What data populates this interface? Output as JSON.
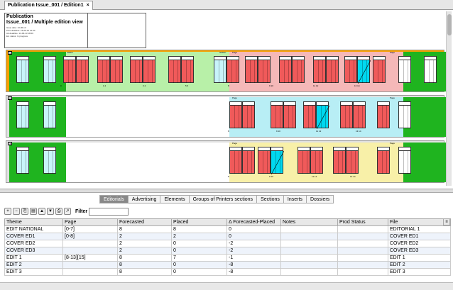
{
  "tab": {
    "title": "Publication Issue_001 / Edition1",
    "close": "×"
  },
  "info": {
    "title": "Publication",
    "subtitle": "Issue_001 / Multiple edition view",
    "lines": [
      "Issue date: 13-06-13",
      "Print deadline: 15-06-13 12:00",
      "Ad deadline: 14-06-13 18:00",
      "Ed. status: In progress"
    ]
  },
  "rows": [
    {
      "num": "1",
      "bands": [
        {
          "kind": "green",
          "from": 0,
          "to": 80
        },
        {
          "kind": "lightgreen",
          "from": 80,
          "to": 310
        },
        {
          "kind": "pink",
          "from": 310,
          "to": 555
        },
        {
          "kind": "green",
          "from": 555,
          "to": 618
        }
      ],
      "tags": [
        {
          "x": 86,
          "text": "Editor"
        },
        {
          "x": 300,
          "text": "Sudion"
        },
        {
          "x": 318,
          "text": "Page"
        },
        {
          "x": 540,
          "text": "Page"
        }
      ],
      "pages": [
        {
          "x": 14,
          "c": "cyan"
        },
        {
          "x": 52,
          "c": "cyan"
        },
        {
          "x": 80,
          "c": "red"
        },
        {
          "x": 98,
          "c": "red"
        },
        {
          "x": 128,
          "c": "red"
        },
        {
          "x": 146,
          "c": "red"
        },
        {
          "x": 174,
          "c": "red"
        },
        {
          "x": 192,
          "c": "red"
        },
        {
          "x": 228,
          "c": "red"
        },
        {
          "x": 246,
          "c": "red"
        },
        {
          "x": 292,
          "c": "cyan"
        },
        {
          "x": 310,
          "c": "red"
        },
        {
          "x": 336,
          "c": "red"
        },
        {
          "x": 354,
          "c": "red"
        },
        {
          "x": 384,
          "c": "red"
        },
        {
          "x": 402,
          "c": "red"
        },
        {
          "x": 432,
          "c": "red"
        },
        {
          "x": 450,
          "c": "red"
        },
        {
          "x": 476,
          "c": "red"
        },
        {
          "x": 494,
          "c": "cyan-diag"
        },
        {
          "x": 516,
          "c": "red"
        },
        {
          "x": 552,
          "c": "white"
        },
        {
          "x": 588,
          "c": "white"
        }
      ],
      "pn": [
        {
          "x": 76,
          "t": "0"
        },
        {
          "x": 136,
          "t": "1 2"
        },
        {
          "x": 192,
          "t": "3 4"
        },
        {
          "x": 252,
          "t": "5 6"
        },
        {
          "x": 312,
          "t": "8"
        },
        {
          "x": 370,
          "t": "9 10"
        },
        {
          "x": 432,
          "t": "11 12"
        },
        {
          "x": 490,
          "t": "13 14"
        }
      ]
    },
    {
      "num": "2",
      "bands": [
        {
          "kind": "green",
          "from": 0,
          "to": 80
        },
        {
          "kind": "white",
          "from": 80,
          "to": 310
        },
        {
          "kind": "cyanbg",
          "from": 310,
          "to": 555
        },
        {
          "kind": "green",
          "from": 555,
          "to": 618
        }
      ],
      "tags": [
        {
          "x": 318,
          "text": "Page"
        },
        {
          "x": 540,
          "text": "Page"
        }
      ],
      "pages": [
        {
          "x": 14,
          "c": "cyan"
        },
        {
          "x": 52,
          "c": "cyan"
        },
        {
          "x": 314,
          "c": "red"
        },
        {
          "x": 332,
          "c": "red"
        },
        {
          "x": 372,
          "c": "red"
        },
        {
          "x": 390,
          "c": "red"
        },
        {
          "x": 418,
          "c": "red"
        },
        {
          "x": 436,
          "c": "cyan-diag"
        },
        {
          "x": 470,
          "c": "red"
        },
        {
          "x": 488,
          "c": "red"
        },
        {
          "x": 522,
          "c": "red"
        },
        {
          "x": 552,
          "c": "white"
        }
      ],
      "pn": [
        {
          "x": 312,
          "t": "8"
        },
        {
          "x": 380,
          "t": "9 10"
        },
        {
          "x": 436,
          "t": "11 12"
        },
        {
          "x": 492,
          "t": "13 14"
        }
      ]
    },
    {
      "num": "3",
      "bands": [
        {
          "kind": "green",
          "from": 0,
          "to": 80
        },
        {
          "kind": "white",
          "from": 80,
          "to": 310
        },
        {
          "kind": "yellow",
          "from": 310,
          "to": 555
        },
        {
          "kind": "green",
          "from": 555,
          "to": 618
        }
      ],
      "tags": [
        {
          "x": 318,
          "text": "Page"
        },
        {
          "x": 540,
          "text": "Page"
        }
      ],
      "pages": [
        {
          "x": 14,
          "c": "cyan"
        },
        {
          "x": 52,
          "c": "cyan"
        },
        {
          "x": 314,
          "c": "red"
        },
        {
          "x": 332,
          "c": "red"
        },
        {
          "x": 354,
          "c": "red"
        },
        {
          "x": 372,
          "c": "cyan-diag"
        },
        {
          "x": 410,
          "c": "red"
        },
        {
          "x": 428,
          "c": "red"
        },
        {
          "x": 460,
          "c": "red"
        },
        {
          "x": 478,
          "c": "red"
        },
        {
          "x": 522,
          "c": "red"
        },
        {
          "x": 552,
          "c": "white"
        }
      ],
      "pn": [
        {
          "x": 312,
          "t": "8"
        },
        {
          "x": 370,
          "t": "9 10"
        },
        {
          "x": 430,
          "t": "11 12"
        },
        {
          "x": 484,
          "t": "13 14"
        }
      ]
    }
  ],
  "tabs": [
    "Editorials",
    "Advertising",
    "Elements",
    "Groups of Printers sections",
    "Sections",
    "Inserts",
    "Dossiers"
  ],
  "toolbar": {
    "filter_label": "Filter",
    "filter_value": ""
  },
  "table": {
    "headers": [
      "Theme",
      "Page",
      "Forecasted",
      "Placed",
      "Δ Forecasted-Placed",
      "Notes",
      "Prod Status",
      "File"
    ],
    "rows": [
      [
        "EDIT NATIONAL",
        "[0-7]",
        "8",
        "8",
        "0",
        "",
        "",
        "EDITORIAL 1"
      ],
      [
        "COVER ED1",
        "[0-8]",
        "2",
        "2",
        "0",
        "",
        "",
        "COVER ED1"
      ],
      [
        "COVER ED2",
        "",
        "2",
        "0",
        "-2",
        "",
        "",
        "COVER ED2"
      ],
      [
        "COVER ED3",
        "",
        "2",
        "0",
        "-2",
        "",
        "",
        "COVER ED3"
      ],
      [
        "EDIT 1",
        "[8-13][15]",
        "8",
        "7",
        "-1",
        "",
        "",
        "EDIT 1"
      ],
      [
        "EDIT 2",
        "",
        "8",
        "0",
        "-8",
        "",
        "",
        "EDIT 2"
      ],
      [
        "EDIT 3",
        "",
        "8",
        "0",
        "-8",
        "",
        "",
        "EDIT 3"
      ]
    ]
  },
  "colors": {
    "green": "#1fb41f",
    "lightgreen": "#b8f0a8",
    "pink": "#f5b8b8",
    "cyanbg": "#b8eef5",
    "yellow": "#f8f0a8",
    "red": "#f05a5a",
    "cyan": "#c8f4fa"
  }
}
